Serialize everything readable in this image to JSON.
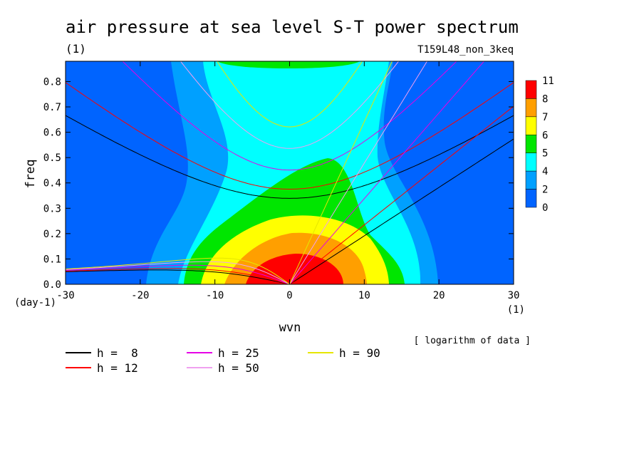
{
  "chart_data": {
    "type": "heatmap",
    "title": "air pressure at sea level S-T power spectrum",
    "subtitle_left": "(1)",
    "subtitle_right": "T159L48_non_3keq",
    "xlabel": "wvn",
    "ylabel": "freq",
    "x_unit": "(1)",
    "y_unit": "(day-1)",
    "xlim": [
      -30,
      30
    ],
    "ylim": [
      0,
      0.88
    ],
    "x_ticks": [
      -30,
      -20,
      -10,
      0,
      10,
      20,
      30
    ],
    "y_ticks": [
      0.0,
      0.1,
      0.2,
      0.3,
      0.4,
      0.5,
      0.6,
      0.7,
      0.8
    ],
    "x_tick_labels": [
      "-30",
      "-20",
      "-10",
      "0",
      "10",
      "20",
      "30"
    ],
    "y_tick_labels": [
      "0.0",
      "0.1",
      "0.2",
      "0.3",
      "0.4",
      "0.5",
      "0.6",
      "0.7",
      "0.8"
    ],
    "colorbar": {
      "labels": [
        "11",
        "8",
        "7",
        "6",
        "5",
        "4",
        "2",
        "0"
      ],
      "colors": [
        "#ff0000",
        "#ff9f00",
        "#ffff00",
        "#00e600",
        "#00ffff",
        "#00a0ff",
        "#0064ff"
      ]
    },
    "note": "[ logarithm of data ]",
    "dispersion_curves": [
      {
        "label": "h =  8",
        "color": "#000000"
      },
      {
        "label": "h = 12",
        "color": "#ff0000"
      },
      {
        "label": "h = 25",
        "color": "#e600e6"
      },
      {
        "label": "h = 50",
        "color": "#f0a0f0"
      },
      {
        "label": "h = 90",
        "color": "#e6e600"
      }
    ],
    "grid": false,
    "legend_position": "bottom-left"
  }
}
